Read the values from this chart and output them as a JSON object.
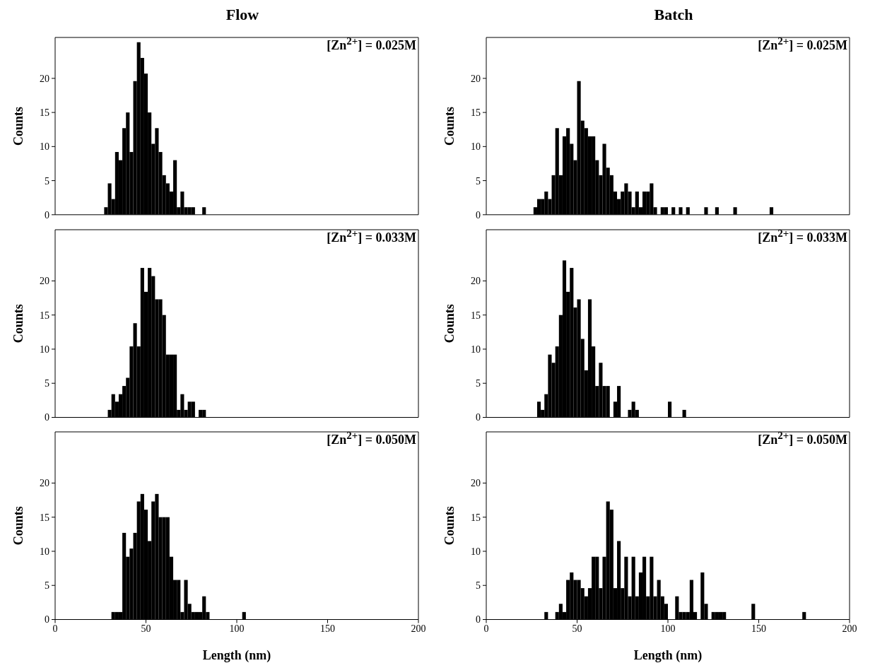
{
  "chart_data": [
    {
      "type": "histogram",
      "title": "Flow",
      "ylabel": "Counts",
      "annotations": [
        "[Zn$^{2+}$] = 0.025M"
      ],
      "color": "#000000",
      "xlim": [
        0,
        200
      ],
      "xticks": [
        0,
        50,
        100,
        150,
        200
      ],
      "ylim": [
        0,
        26
      ],
      "yticks": [
        0,
        5,
        10,
        15,
        20
      ],
      "tick_labels": "y",
      "bins": [
        27,
        29,
        31,
        33,
        35,
        37,
        39,
        41,
        43,
        45,
        47,
        49,
        51,
        53,
        55,
        57,
        59,
        61,
        63,
        65,
        67,
        69,
        71,
        73,
        75,
        77,
        79,
        81,
        83
      ],
      "values": [
        1.1,
        4.6,
        2.3,
        9.2,
        8.0,
        12.7,
        15.0,
        9.2,
        19.6,
        25.3,
        23.0,
        20.7,
        15.0,
        10.4,
        12.7,
        9.2,
        5.8,
        4.6,
        3.4,
        8.0,
        1.1,
        3.4,
        1.1,
        1.1,
        1.1,
        0,
        0,
        1.1
      ]
    },
    {
      "type": "histogram",
      "title": "Batch",
      "ylabel": "Counts",
      "annotations": [
        "[Zn$^{2+}$] = 0.025M"
      ],
      "color": "#000000",
      "xlim": [
        0,
        200
      ],
      "xticks": [
        0,
        50,
        100,
        150,
        200
      ],
      "ylim": [
        0,
        26
      ],
      "yticks": [
        0,
        5,
        10,
        15,
        20
      ],
      "tick_labels": "y",
      "bins": [
        26,
        28,
        30,
        32,
        34,
        36,
        38,
        40,
        42,
        44,
        46,
        48,
        50,
        52,
        54,
        56,
        58,
        60,
        62,
        64,
        66,
        68,
        70,
        72,
        74,
        76,
        78,
        80,
        82,
        84,
        86,
        88,
        90,
        92,
        94,
        96,
        98,
        100,
        102,
        104,
        106,
        108,
        110,
        112,
        114,
        116,
        118,
        120,
        122,
        124,
        126,
        128,
        130,
        132,
        134,
        136,
        138,
        140,
        142,
        144,
        146,
        148,
        150,
        152,
        154,
        156,
        158
      ],
      "values": [
        1.1,
        2.3,
        2.3,
        3.4,
        2.3,
        5.8,
        12.7,
        5.8,
        11.5,
        12.7,
        10.4,
        8.0,
        19.6,
        13.8,
        12.7,
        11.5,
        11.5,
        8.0,
        5.8,
        10.4,
        6.9,
        5.8,
        3.4,
        2.3,
        3.4,
        4.6,
        3.4,
        1.1,
        3.4,
        1.1,
        3.4,
        3.4,
        4.6,
        1.1,
        0,
        1.1,
        1.1,
        0,
        1.1,
        0,
        1.1,
        0,
        1.1,
        0,
        0,
        0,
        0,
        1.1,
        0,
        0,
        1.1,
        0,
        0,
        0,
        0,
        1.1,
        0,
        0,
        0,
        0,
        0,
        0,
        0,
        0,
        0,
        1.1
      ]
    },
    {
      "type": "histogram",
      "ylabel": "Counts",
      "annotations": [
        "[Zn$^{2+}$] = 0.033M"
      ],
      "color": "#000000",
      "xlim": [
        0,
        200
      ],
      "xticks": [
        0,
        50,
        100,
        150,
        200
      ],
      "ylim": [
        0,
        27.5
      ],
      "yticks": [
        0,
        5,
        10,
        15,
        20
      ],
      "tick_labels": "y",
      "bins": [
        29,
        31,
        33,
        35,
        37,
        39,
        41,
        43,
        45,
        47,
        49,
        51,
        53,
        55,
        57,
        59,
        61,
        63,
        65,
        67,
        69,
        71,
        73,
        75,
        77,
        79,
        81,
        83
      ],
      "values": [
        1.1,
        3.4,
        2.3,
        3.4,
        4.6,
        5.8,
        10.4,
        13.8,
        10.4,
        21.9,
        18.4,
        21.9,
        20.7,
        17.3,
        17.3,
        15.0,
        9.2,
        9.2,
        9.2,
        1.1,
        3.4,
        1.1,
        2.3,
        2.3,
        0,
        1.1,
        1.1
      ]
    },
    {
      "type": "histogram",
      "ylabel": "Counts",
      "annotations": [
        "[Zn$^{2+}$] = 0.033M"
      ],
      "color": "#000000",
      "xlim": [
        0,
        200
      ],
      "xticks": [
        0,
        50,
        100,
        150,
        200
      ],
      "ylim": [
        0,
        27.5
      ],
      "yticks": [
        0,
        5,
        10,
        15,
        20
      ],
      "tick_labels": "y",
      "bins": [
        28,
        30,
        32,
        34,
        36,
        38,
        40,
        42,
        44,
        46,
        48,
        50,
        52,
        54,
        56,
        58,
        60,
        62,
        64,
        66,
        68,
        70,
        72,
        74,
        76,
        78,
        80,
        82,
        84,
        86,
        88,
        90,
        92,
        94,
        96,
        98,
        100,
        102,
        104,
        106,
        108,
        110
      ],
      "values": [
        2.3,
        1.1,
        3.4,
        9.2,
        8.0,
        10.4,
        15.0,
        23.0,
        18.4,
        21.9,
        16.1,
        17.3,
        11.5,
        6.9,
        17.3,
        10.4,
        4.6,
        8.0,
        4.6,
        4.6,
        0,
        2.3,
        4.6,
        0,
        0,
        1.1,
        2.3,
        1.1,
        0,
        0,
        0,
        0,
        0,
        0,
        0,
        0,
        2.3,
        0,
        0,
        0,
        1.1
      ]
    },
    {
      "type": "histogram",
      "ylabel": "Counts",
      "xlabel": "Length (nm)",
      "annotations": [
        "[Zn$^{2+}$] = 0.050M"
      ],
      "color": "#000000",
      "xlim": [
        0,
        200
      ],
      "xticks": [
        0,
        50,
        100,
        150,
        200
      ],
      "ylim": [
        0,
        27.5
      ],
      "yticks": [
        0,
        5,
        10,
        15,
        20
      ],
      "bins": [
        31,
        33,
        35,
        37,
        39,
        41,
        43,
        45,
        47,
        49,
        51,
        53,
        55,
        57,
        59,
        61,
        63,
        65,
        67,
        69,
        71,
        73,
        75,
        77,
        79,
        81,
        83,
        85,
        87,
        89,
        91,
        93,
        95,
        97,
        99,
        101,
        103,
        105
      ],
      "values": [
        1.1,
        1.1,
        1.1,
        12.7,
        9.2,
        10.4,
        12.7,
        17.3,
        18.4,
        16.1,
        11.5,
        17.3,
        18.4,
        15.0,
        15.0,
        15.0,
        9.2,
        5.8,
        5.8,
        1.1,
        5.8,
        2.3,
        1.1,
        1.1,
        1.1,
        3.4,
        1.1,
        0,
        0,
        0,
        0,
        0,
        0,
        0,
        0,
        0,
        1.1
      ]
    },
    {
      "type": "histogram",
      "ylabel": "Counts",
      "xlabel": "Length (nm)",
      "annotations": [
        "[Zn$^{2+}$] = 0.050M"
      ],
      "color": "#000000",
      "xlim": [
        0,
        200
      ],
      "xticks": [
        0,
        50,
        100,
        150,
        200
      ],
      "ylim": [
        0,
        27.5
      ],
      "yticks": [
        0,
        5,
        10,
        15,
        20
      ],
      "bins": [
        32,
        34,
        36,
        38,
        40,
        42,
        44,
        46,
        48,
        50,
        52,
        54,
        56,
        58,
        60,
        62,
        64,
        66,
        68,
        70,
        72,
        74,
        76,
        78,
        80,
        82,
        84,
        86,
        88,
        90,
        92,
        94,
        96,
        98,
        100,
        102,
        104,
        106,
        108,
        110,
        112,
        114,
        116,
        118,
        120,
        122,
        124,
        126,
        128,
        130,
        132,
        134,
        136,
        138,
        140,
        142,
        144,
        146,
        148,
        150,
        152,
        154,
        156,
        158,
        160,
        162,
        164,
        166,
        168,
        170,
        172,
        174,
        176
      ],
      "values": [
        1.1,
        0,
        0,
        1.1,
        2.3,
        1.1,
        5.8,
        6.9,
        5.8,
        5.8,
        4.6,
        3.4,
        4.6,
        9.2,
        9.2,
        4.6,
        9.2,
        17.3,
        16.1,
        4.6,
        11.5,
        4.6,
        9.2,
        3.4,
        9.2,
        3.4,
        6.9,
        9.2,
        3.4,
        9.2,
        3.4,
        5.8,
        3.4,
        2.3,
        0,
        0,
        3.4,
        1.1,
        1.1,
        1.1,
        5.8,
        1.1,
        0,
        6.9,
        2.3,
        0,
        1.1,
        1.1,
        1.1,
        1.1,
        0,
        0,
        0,
        0,
        0,
        0,
        0,
        2.3,
        0,
        0,
        0,
        0,
        0,
        0,
        0,
        0,
        0,
        0,
        0,
        0,
        0,
        1.1
      ]
    }
  ]
}
